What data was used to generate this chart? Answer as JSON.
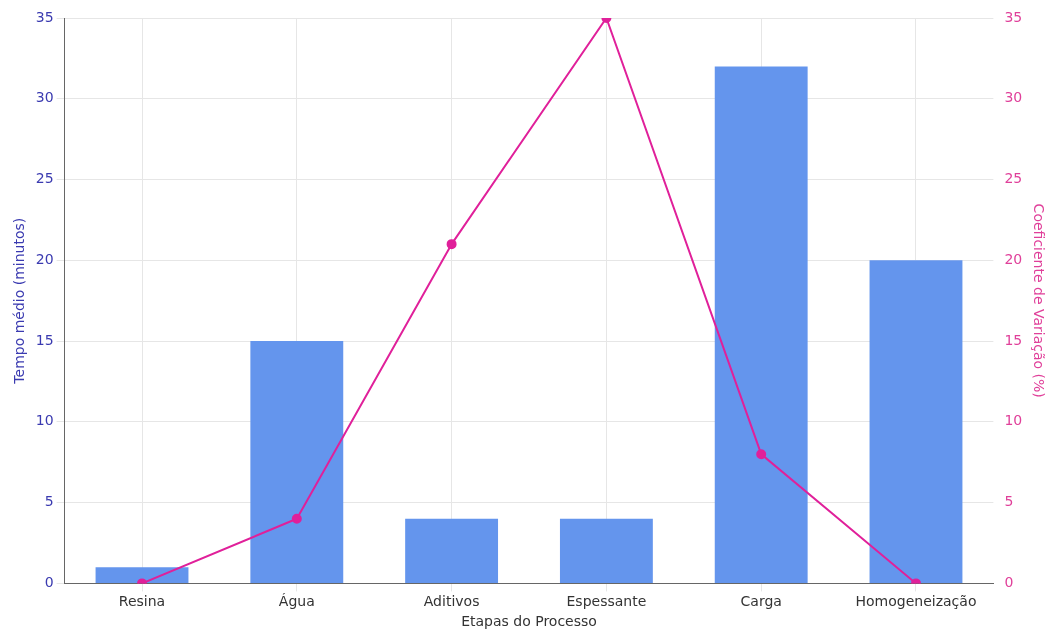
{
  "chart_data": {
    "type": "bar",
    "xlabel": "Etapas do Processo",
    "ylabel": "Tempo médio (minutos)",
    "y2label": "Coeficiente de Variação (%)",
    "categories": [
      "Resina",
      "Água",
      "Aditivos",
      "Espessante",
      "Carga",
      "Homogeneização"
    ],
    "series": [
      {
        "color": "#6495ed",
        "values": [
          1,
          15,
          4,
          4,
          32,
          20
        ]
      },
      {
        "type": "line",
        "axis": "y2",
        "color": "#e0209a",
        "values": [
          0,
          4,
          21,
          35,
          8,
          0
        ]
      }
    ],
    "ylim": [
      0,
      35
    ],
    "yticks": [
      0,
      5,
      10,
      15,
      20,
      25,
      30,
      35
    ],
    "y2lim": [
      0,
      35
    ],
    "y2ticks": [
      0,
      5,
      10,
      15,
      20,
      25,
      30,
      35
    ],
    "grid": true,
    "marker": "circle",
    "line_style": "solid"
  }
}
